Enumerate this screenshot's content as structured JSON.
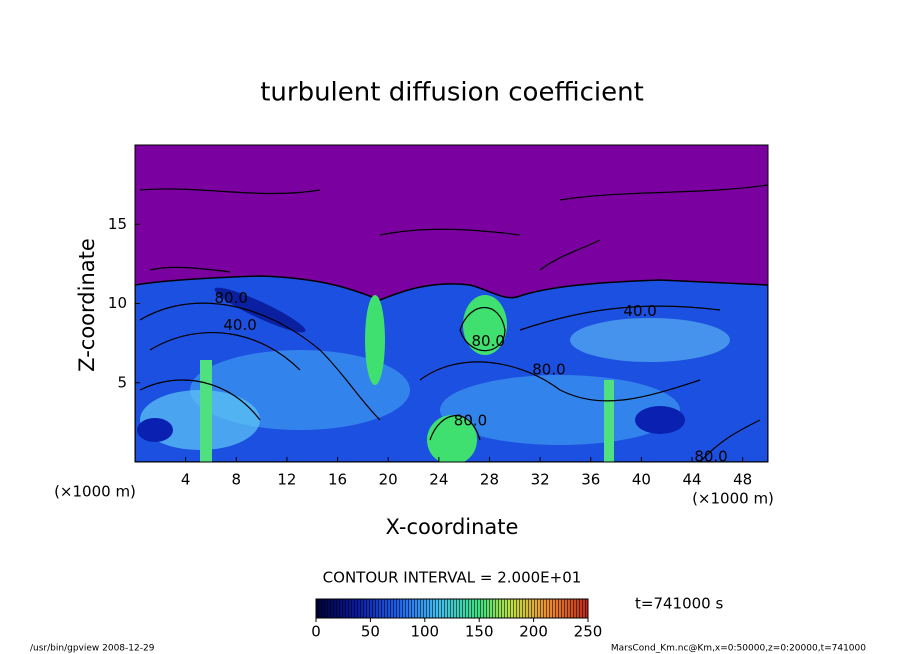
{
  "chart_data": {
    "type": "contour",
    "title": "turbulent diffusion coefficient",
    "xlabel": "X-coordinate",
    "ylabel": "Z-coordinate",
    "x_unit_label": "(×1000 m)",
    "y_unit_label": "(×1000 m)",
    "xlim": [
      0,
      50
    ],
    "ylim": [
      0,
      20
    ],
    "xticks": [
      4,
      8,
      12,
      16,
      20,
      24,
      28,
      32,
      36,
      40,
      44,
      48
    ],
    "yticks": [
      5,
      10,
      15
    ],
    "contour_labels": [
      {
        "value": 80,
        "label": "80.0",
        "x": 7.6,
        "z": 10.3
      },
      {
        "value": 40,
        "label": "40.0",
        "x": 8.3,
        "z": 8.6
      },
      {
        "value": 80,
        "label": "80.0",
        "x": 27.9,
        "z": 7.6
      },
      {
        "value": 40,
        "label": "40.0",
        "x": 39.9,
        "z": 9.5
      },
      {
        "value": 80,
        "label": "80.0",
        "x": 32.7,
        "z": 5.8
      },
      {
        "value": 80,
        "label": "80.0",
        "x": 26.5,
        "z": 2.6
      },
      {
        "value": 80,
        "label": "80.0",
        "x": 45.5,
        "z": 0.3
      }
    ],
    "contour_interval_text": "CONTOUR INTERVAL = 2.000E+01",
    "colorbar": {
      "lim": [
        0,
        250
      ],
      "ticks": [
        0,
        50,
        100,
        150,
        200,
        250
      ]
    },
    "time_label": "t=741000 s",
    "footer_left": "/usr/bin/gpview   2008-12-29",
    "footer_right": "MarsCond_Km.nc@Km,x=0:50000,z=0:20000,t=741000"
  }
}
